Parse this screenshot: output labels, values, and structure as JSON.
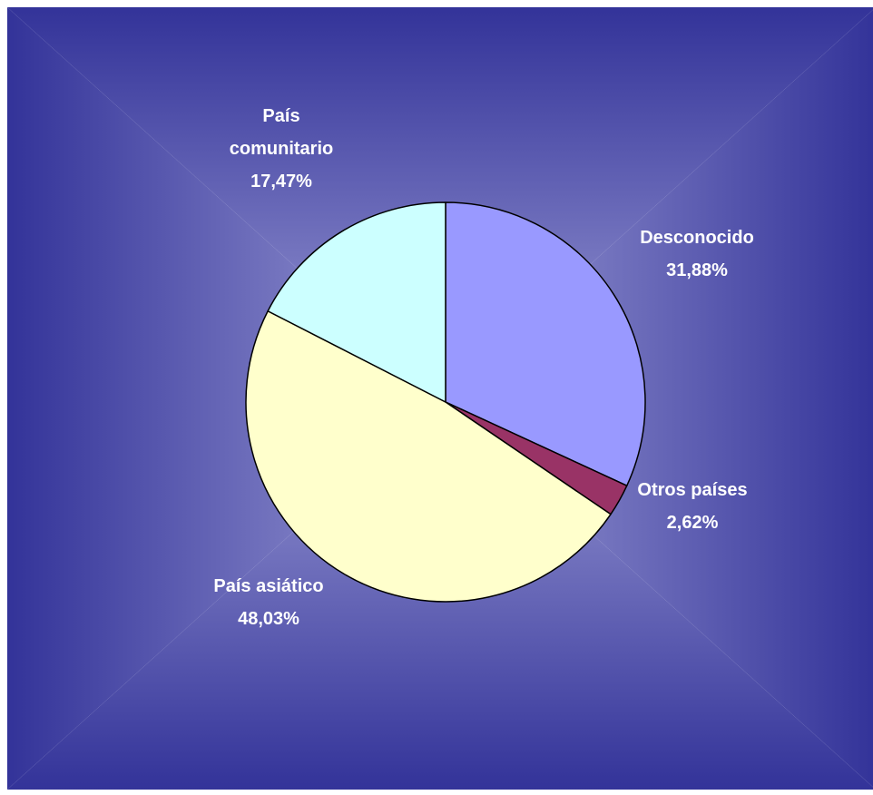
{
  "chart_data": {
    "type": "pie",
    "title": "",
    "start_angle_deg": 0,
    "direction": "clockwise",
    "slices": [
      {
        "label": "Desconocido",
        "value": 31.88,
        "value_text": "31,88%",
        "color": "#9999ff"
      },
      {
        "label": "Otros países",
        "value": 2.62,
        "value_text": "2,62%",
        "color": "#993366"
      },
      {
        "label": "País asiático",
        "value": 48.03,
        "value_text": "48,03%",
        "color": "#ffffcc"
      },
      {
        "label": "País comunitario",
        "value": 17.47,
        "value_text": "17,47%",
        "color": "#ccffff"
      }
    ],
    "label_color": "#ffffff",
    "background": {
      "frame_color": "#ffffff",
      "edge_color": "#333399",
      "center_color": "#9a9ad4"
    }
  }
}
